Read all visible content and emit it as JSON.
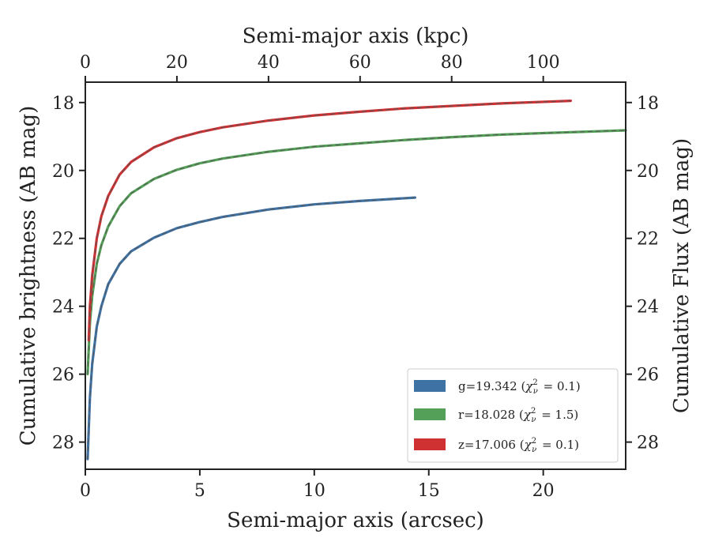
{
  "chart_data": {
    "type": "line",
    "title": "",
    "xlabel": "Semi-major axis (arcsec)",
    "ylabel": "Cumulative brightness (AB mag)",
    "x2label": "Semi-major axis (kpc)",
    "y2label": "Cumulative Flux (AB mag)",
    "xlim": [
      0,
      23.6
    ],
    "ylim": [
      28.8,
      17.4
    ],
    "x2lim": [
      0,
      118
    ],
    "xticks": [
      0,
      5,
      10,
      15,
      20
    ],
    "x2ticks": [
      0,
      20,
      40,
      60,
      80,
      100
    ],
    "yticks": [
      18,
      20,
      22,
      24,
      26,
      28
    ],
    "y_inverted": true,
    "grid": false,
    "legend": {
      "position": "lower-right"
    },
    "series": [
      {
        "name": "g=19.342 (χ²_ν = 0.1)",
        "legend_main": "g=19.342",
        "legend_chi": "2",
        "legend_nu": "ν",
        "legend_val": "0.1",
        "color": "#3f72a4",
        "x": [
          0.1,
          0.2,
          0.3,
          0.5,
          0.7,
          1.0,
          1.5,
          2.0,
          3.0,
          4.0,
          5.0,
          6.0,
          8.0,
          10.0,
          12.0,
          14.4
        ],
        "values": [
          28.5,
          26.7,
          25.7,
          24.6,
          24.0,
          23.35,
          22.75,
          22.38,
          21.98,
          21.7,
          21.52,
          21.37,
          21.15,
          21.0,
          20.9,
          20.8
        ]
      },
      {
        "name": "r=18.028 (χ²_ν = 1.5)",
        "legend_main": "r=18.028",
        "legend_chi": "2",
        "legend_nu": "ν",
        "legend_val": "1.5",
        "color": "#55a058",
        "x": [
          0.1,
          0.2,
          0.3,
          0.5,
          0.7,
          1.0,
          1.5,
          2.0,
          3.0,
          4.0,
          5.0,
          6.0,
          8.0,
          10.0,
          12.0,
          14.0,
          16.0,
          18.0,
          20.0,
          23.6
        ],
        "values": [
          26.0,
          24.5,
          23.7,
          22.75,
          22.2,
          21.65,
          21.05,
          20.67,
          20.25,
          19.98,
          19.79,
          19.65,
          19.45,
          19.3,
          19.2,
          19.1,
          19.02,
          18.95,
          18.9,
          18.82
        ]
      },
      {
        "name": "z=17.006 (χ²_ν = 0.1)",
        "legend_main": "z=17.006",
        "legend_chi": "2",
        "legend_nu": "ν",
        "legend_val": "0.1",
        "color": "#cf3133",
        "x": [
          0.15,
          0.2,
          0.3,
          0.5,
          0.7,
          1.0,
          1.5,
          2.0,
          3.0,
          4.0,
          5.0,
          6.0,
          8.0,
          10.0,
          12.0,
          14.0,
          16.0,
          18.0,
          21.2
        ],
        "values": [
          25.0,
          24.0,
          23.1,
          22.0,
          21.35,
          20.75,
          20.12,
          19.75,
          19.32,
          19.05,
          18.87,
          18.73,
          18.53,
          18.38,
          18.27,
          18.17,
          18.1,
          18.03,
          17.95
        ]
      }
    ]
  }
}
